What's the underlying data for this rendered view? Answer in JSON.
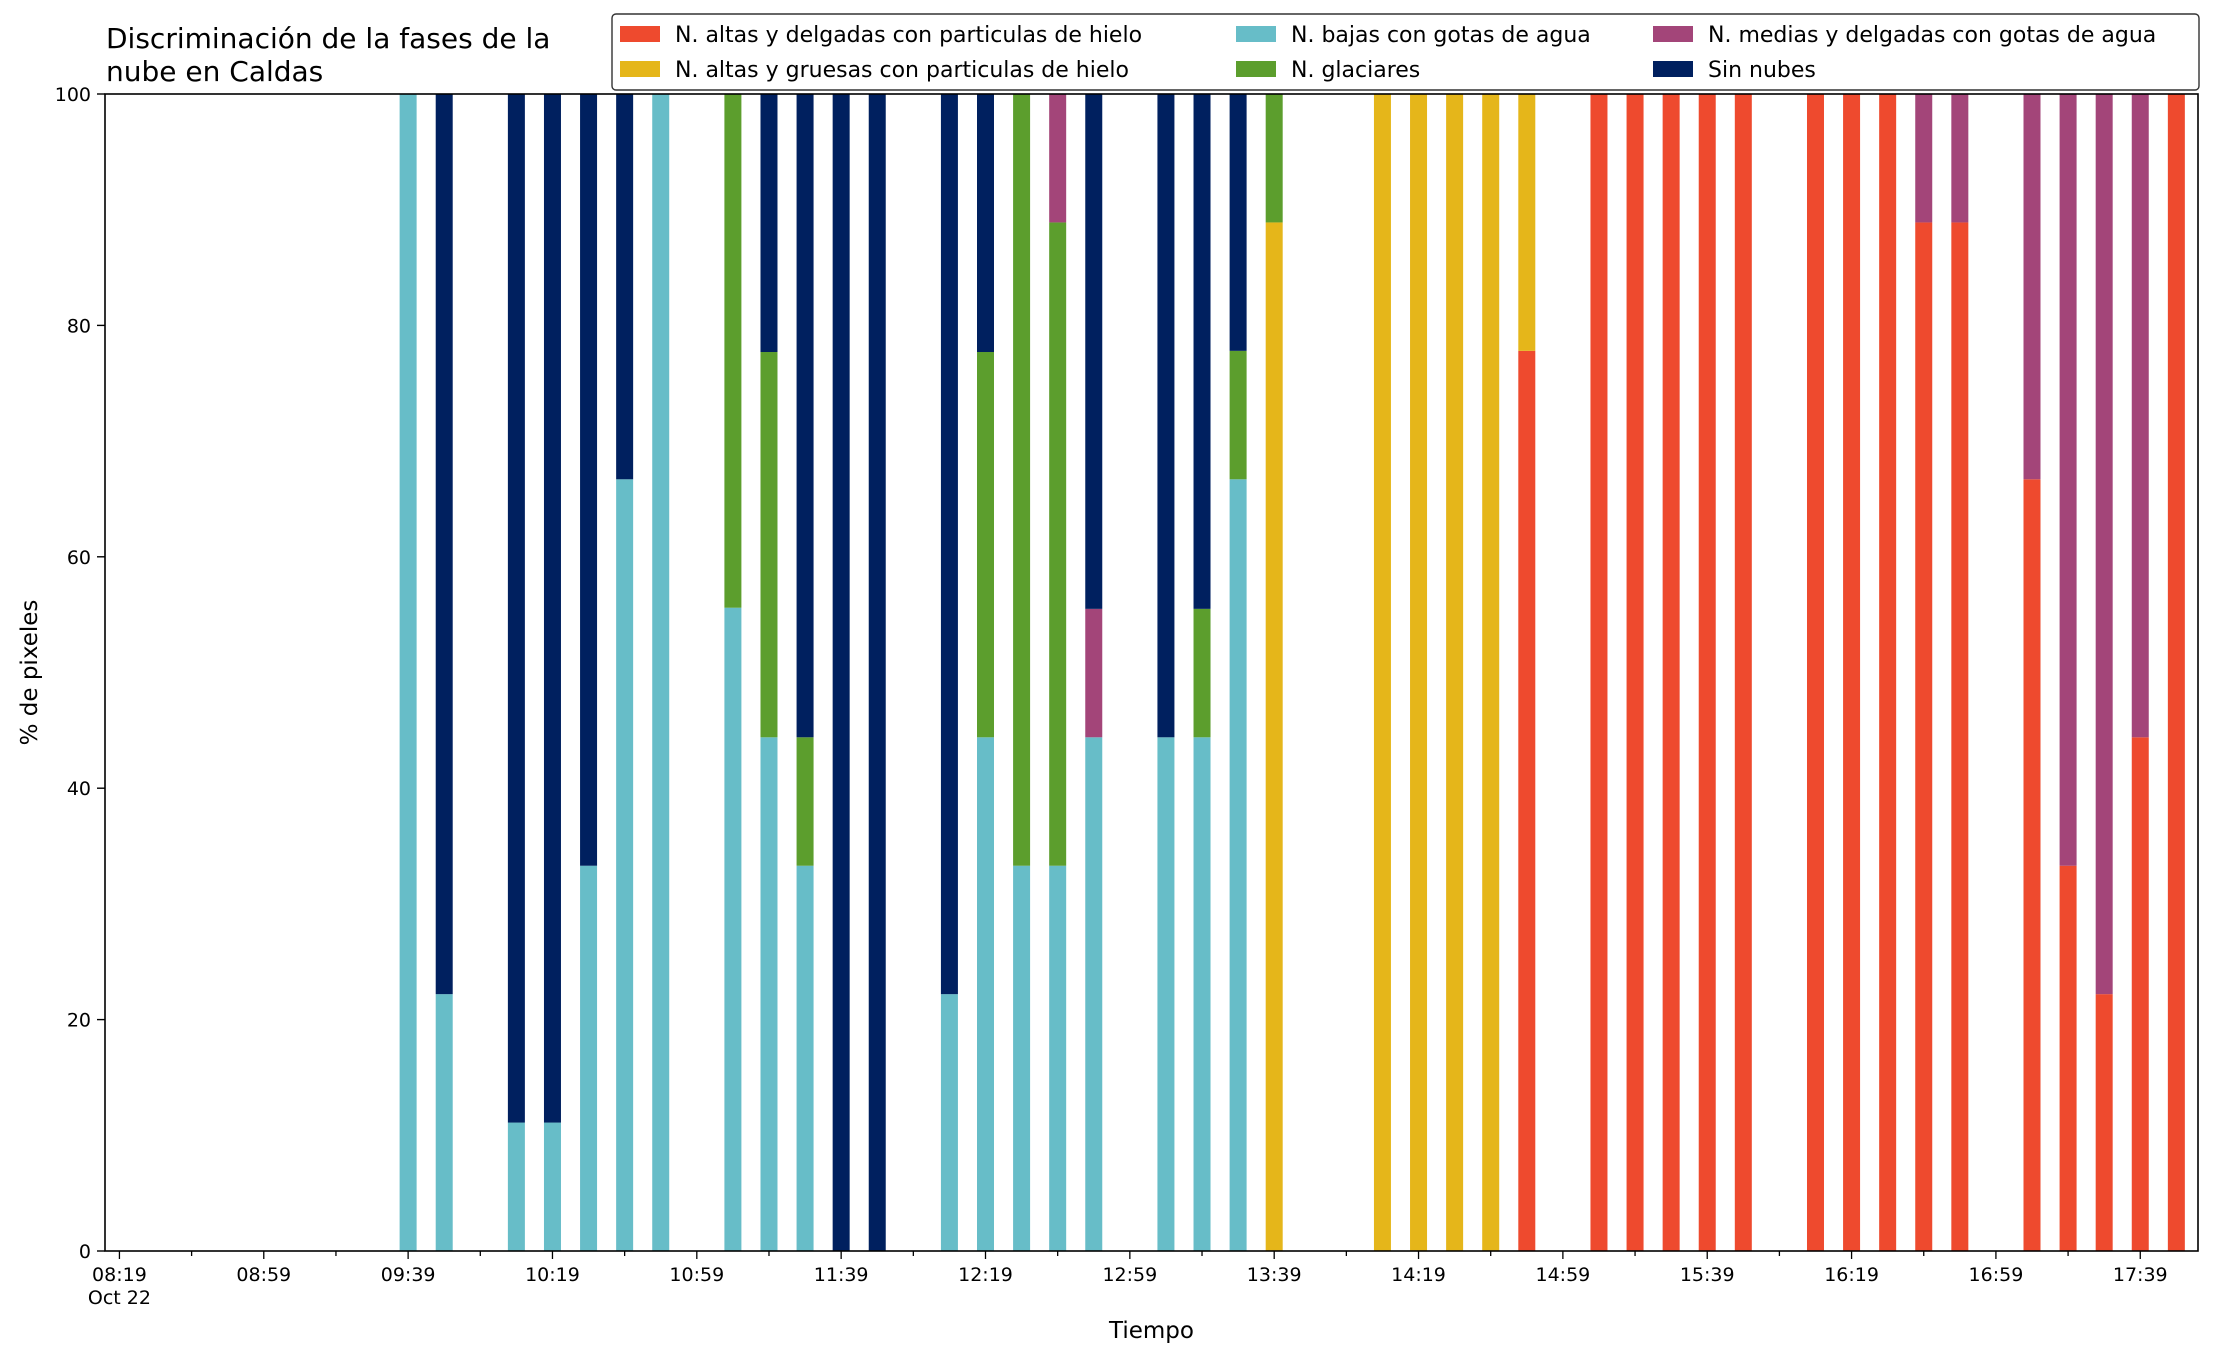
{
  "chart_data": {
    "type": "bar",
    "stacked": true,
    "title": "Discriminación de la fases de la\nnube en Caldas",
    "xlabel": "Tiempo",
    "ylabel": "% de pixeles",
    "ylim": [
      0,
      100
    ],
    "yticks": [
      0,
      20,
      40,
      60,
      80,
      100
    ],
    "xlim": [
      "08:15",
      "17:55"
    ],
    "xticks": [
      {
        "time": "08:19",
        "label": "08:19\nOct 22"
      },
      {
        "time": "08:59",
        "label": "08:59"
      },
      {
        "time": "09:39",
        "label": "09:39"
      },
      {
        "time": "10:19",
        "label": "10:19"
      },
      {
        "time": "10:59",
        "label": "10:59"
      },
      {
        "time": "11:39",
        "label": "11:39"
      },
      {
        "time": "12:19",
        "label": "12:19"
      },
      {
        "time": "12:59",
        "label": "12:59"
      },
      {
        "time": "13:39",
        "label": "13:39"
      },
      {
        "time": "14:19",
        "label": "14:19"
      },
      {
        "time": "14:59",
        "label": "14:59"
      },
      {
        "time": "15:39",
        "label": "15:39"
      },
      {
        "time": "16:19",
        "label": "16:19"
      },
      {
        "time": "16:59",
        "label": "16:59"
      },
      {
        "time": "17:39",
        "label": "17:39"
      }
    ],
    "legend_position": "top-right",
    "series": [
      {
        "name": "N. altas y delgadas con particulas de hielo",
        "color": "#ee4a2e"
      },
      {
        "name": "N. altas y gruesas con particulas de hielo",
        "color": "#e5b61a"
      },
      {
        "name": "N. bajas con gotas de agua",
        "color": "#67bdc8"
      },
      {
        "name": "N. glaciares",
        "color": "#5c9e2d"
      },
      {
        "name": "N. medias y delgadas con gotas de agua",
        "color": "#a34579"
      },
      {
        "name": "Sin nubes",
        "color": "#00205f"
      }
    ],
    "stack_order": [
      "N. altas y delgadas con particulas de hielo",
      "N. altas y gruesas con particulas de hielo",
      "N. bajas con gotas de agua",
      "N. glaciares",
      "N. medias y delgadas con gotas de agua",
      "Sin nubes"
    ],
    "bars": [
      {
        "time": "09:39",
        "values": [
          0,
          0,
          100,
          0,
          0,
          0
        ]
      },
      {
        "time": "09:49",
        "values": [
          0,
          0,
          22.2,
          0,
          0,
          77.8
        ]
      },
      {
        "time": "10:09",
        "values": [
          0,
          0,
          11.1,
          0,
          0,
          88.9
        ]
      },
      {
        "time": "10:19",
        "values": [
          0,
          0,
          11.1,
          0,
          0,
          88.9
        ]
      },
      {
        "time": "10:29",
        "values": [
          0,
          0,
          33.3,
          0,
          0,
          66.7
        ]
      },
      {
        "time": "10:39",
        "values": [
          0,
          0,
          66.7,
          0,
          0,
          33.3
        ]
      },
      {
        "time": "10:49",
        "values": [
          0,
          0,
          100,
          0,
          0,
          0
        ]
      },
      {
        "time": "11:09",
        "values": [
          0,
          0,
          55.6,
          44.4,
          0,
          0
        ]
      },
      {
        "time": "11:19",
        "values": [
          0,
          0,
          44.4,
          33.3,
          0,
          22.3
        ]
      },
      {
        "time": "11:29",
        "values": [
          0,
          0,
          33.3,
          11.1,
          0,
          55.6
        ]
      },
      {
        "time": "11:39",
        "values": [
          0,
          0,
          0,
          0,
          0,
          100
        ]
      },
      {
        "time": "11:49",
        "values": [
          0,
          0,
          0,
          0,
          0,
          100
        ]
      },
      {
        "time": "12:09",
        "values": [
          0,
          0,
          22.2,
          0,
          0,
          77.8
        ]
      },
      {
        "time": "12:19",
        "values": [
          0,
          0,
          44.4,
          33.3,
          0,
          22.3
        ]
      },
      {
        "time": "12:29",
        "values": [
          0,
          0,
          33.3,
          66.7,
          0,
          0
        ]
      },
      {
        "time": "12:39",
        "values": [
          0,
          0,
          33.3,
          55.6,
          11.1,
          0
        ]
      },
      {
        "time": "12:49",
        "values": [
          0,
          0,
          44.4,
          0,
          11.1,
          44.5
        ]
      },
      {
        "time": "13:09",
        "values": [
          0,
          0,
          44.4,
          0,
          0,
          55.6
        ]
      },
      {
        "time": "13:19",
        "values": [
          0,
          0,
          44.4,
          11.1,
          0,
          44.5
        ]
      },
      {
        "time": "13:29",
        "values": [
          0,
          0,
          66.7,
          11.1,
          0,
          22.2
        ]
      },
      {
        "time": "13:39",
        "values": [
          0,
          88.9,
          0,
          11.1,
          0,
          0
        ]
      },
      {
        "time": "14:09",
        "values": [
          0,
          100,
          0,
          0,
          0,
          0
        ]
      },
      {
        "time": "14:19",
        "values": [
          0,
          100,
          0,
          0,
          0,
          0
        ]
      },
      {
        "time": "14:29",
        "values": [
          0,
          100,
          0,
          0,
          0,
          0
        ]
      },
      {
        "time": "14:39",
        "values": [
          0,
          100,
          0,
          0,
          0,
          0
        ]
      },
      {
        "time": "14:49",
        "values": [
          77.8,
          22.2,
          0,
          0,
          0,
          0
        ]
      },
      {
        "time": "15:09",
        "values": [
          100,
          0,
          0,
          0,
          0,
          0
        ]
      },
      {
        "time": "15:19",
        "values": [
          100,
          0,
          0,
          0,
          0,
          0
        ]
      },
      {
        "time": "15:29",
        "values": [
          100,
          0,
          0,
          0,
          0,
          0
        ]
      },
      {
        "time": "15:39",
        "values": [
          100,
          0,
          0,
          0,
          0,
          0
        ]
      },
      {
        "time": "15:49",
        "values": [
          100,
          0,
          0,
          0,
          0,
          0
        ]
      },
      {
        "time": "16:09",
        "values": [
          100,
          0,
          0,
          0,
          0,
          0
        ]
      },
      {
        "time": "16:19",
        "values": [
          100,
          0,
          0,
          0,
          0,
          0
        ]
      },
      {
        "time": "16:29",
        "values": [
          100,
          0,
          0,
          0,
          0,
          0
        ]
      },
      {
        "time": "16:39",
        "values": [
          88.9,
          0,
          0,
          0,
          11.1,
          0
        ]
      },
      {
        "time": "16:49",
        "values": [
          88.9,
          0,
          0,
          0,
          11.1,
          0
        ]
      },
      {
        "time": "17:09",
        "values": [
          66.7,
          0,
          0,
          0,
          33.3,
          0
        ]
      },
      {
        "time": "17:19",
        "values": [
          33.3,
          0,
          0,
          0,
          66.7,
          0
        ]
      },
      {
        "time": "17:29",
        "values": [
          22.2,
          0,
          0,
          0,
          77.8,
          0
        ]
      },
      {
        "time": "17:39",
        "values": [
          44.4,
          0,
          0,
          0,
          55.6,
          0
        ]
      },
      {
        "time": "17:49",
        "values": [
          100,
          0,
          0,
          0,
          0,
          0
        ]
      }
    ]
  }
}
